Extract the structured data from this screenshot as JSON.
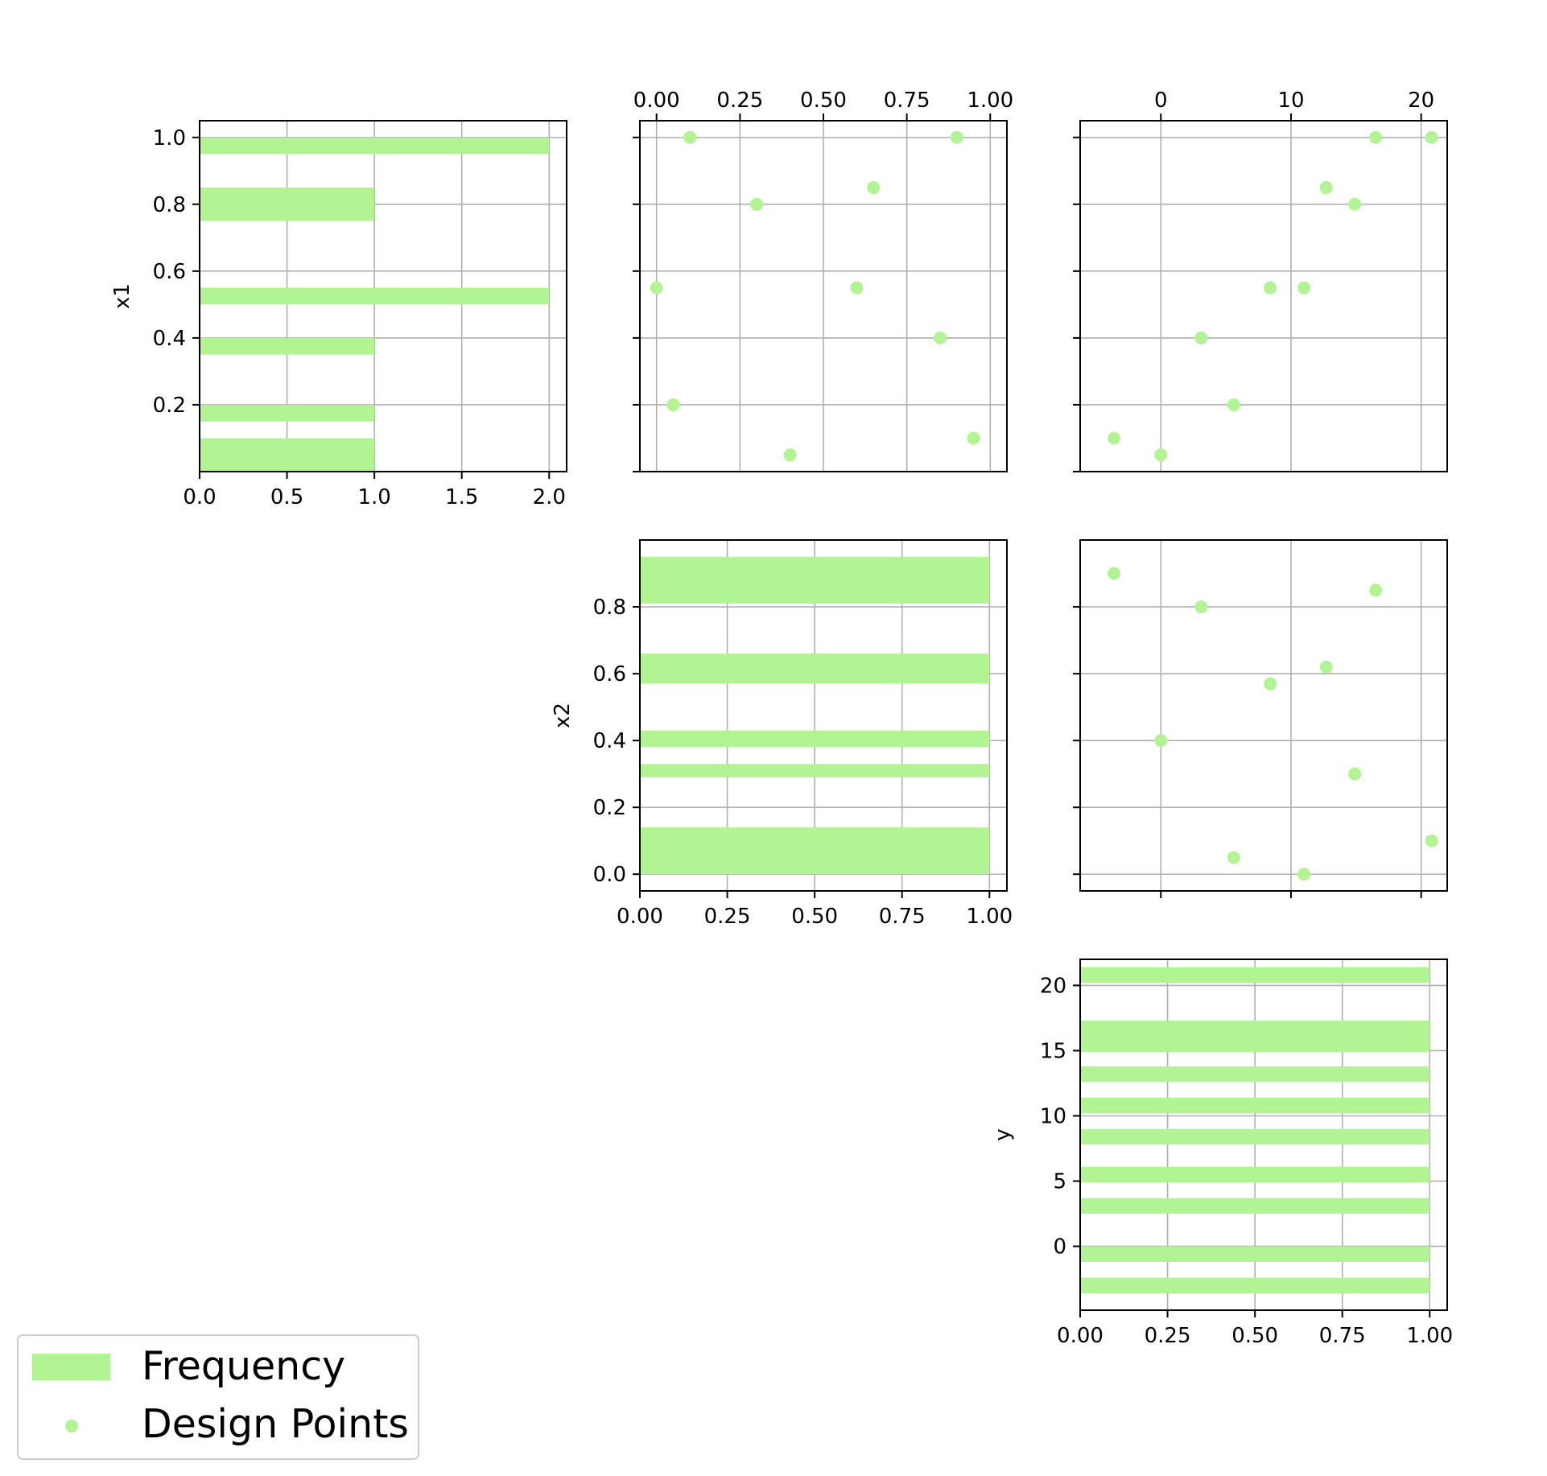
{
  "colors": {
    "series": "#b2f394",
    "grid": "#b0b0b0",
    "axes": "#000000",
    "legend_border": "#cccccc"
  },
  "legend": {
    "placement": "lower-left",
    "items": [
      {
        "label": "Frequency",
        "marker": "bar"
      },
      {
        "label": "Design Points",
        "marker": "dot"
      }
    ]
  },
  "chart_data": [
    {
      "id": "hist-x1",
      "type": "bar",
      "orientation": "horizontal",
      "grid_row": 0,
      "grid_col": 0,
      "ylabel": "x1",
      "xlim": [
        0,
        2.1
      ],
      "ylim": [
        0,
        1.05
      ],
      "xticks": [
        0,
        0.5,
        1,
        1.5,
        2
      ],
      "xtick_labels": [
        "0.0",
        "0.5",
        "1.0",
        "1.5",
        "2.0"
      ],
      "xticks_position": "bottom",
      "yticks": [
        0.2,
        0.4,
        0.6,
        0.8,
        1.0
      ],
      "ytick_labels": [
        "0.2",
        "0.4",
        "0.6",
        "0.8",
        "1.0"
      ],
      "grid": true,
      "bars": [
        {
          "from": 0.0,
          "to": 0.1,
          "value": 1
        },
        {
          "from": 0.15,
          "to": 0.2,
          "value": 1
        },
        {
          "from": 0.35,
          "to": 0.4,
          "value": 1
        },
        {
          "from": 0.5,
          "to": 0.55,
          "value": 2
        },
        {
          "from": 0.75,
          "to": 0.85,
          "value": 1
        },
        {
          "from": 0.95,
          "to": 1.0,
          "value": 2
        }
      ]
    },
    {
      "id": "scatter-x2-x1",
      "type": "scatter",
      "grid_row": 0,
      "grid_col": 1,
      "xlim": [
        -0.05,
        1.05
      ],
      "ylim": [
        0,
        1.05
      ],
      "xticks": [
        0,
        0.25,
        0.5,
        0.75,
        1
      ],
      "xtick_labels": [
        "0.00",
        "0.25",
        "0.50",
        "0.75",
        "1.00"
      ],
      "xticks_position": "top",
      "yticks": [
        0.0,
        0.2,
        0.4,
        0.6,
        0.8,
        1.0
      ],
      "ytick_labels": [],
      "grid": true,
      "x": [
        0.1,
        0.9,
        0.3,
        0.65,
        0.0,
        0.6,
        0.85,
        0.05,
        0.4,
        0.95
      ],
      "y": [
        1.0,
        1.0,
        0.8,
        0.85,
        0.55,
        0.55,
        0.4,
        0.2,
        0.05,
        0.1
      ]
    },
    {
      "id": "scatter-y-x1",
      "type": "scatter",
      "grid_row": 0,
      "grid_col": 2,
      "xlim": [
        -6.2,
        22
      ],
      "ylim": [
        0,
        1.05
      ],
      "xticks": [
        0,
        10,
        20
      ],
      "xtick_labels": [
        "0",
        "10",
        "20"
      ],
      "xticks_position": "top",
      "yticks": [
        0.0,
        0.2,
        0.4,
        0.6,
        0.8,
        1.0
      ],
      "ytick_labels": [],
      "grid": true,
      "x": [
        16.5,
        20.8,
        12.7,
        14.9,
        8.4,
        11.0,
        3.1,
        5.6,
        -3.6,
        0.0
      ],
      "y": [
        1.0,
        1.0,
        0.85,
        0.8,
        0.55,
        0.55,
        0.4,
        0.2,
        0.1,
        0.05
      ]
    },
    {
      "id": "hist-x2",
      "type": "bar",
      "orientation": "horizontal",
      "grid_row": 1,
      "grid_col": 1,
      "ylabel": "x2",
      "xlim": [
        0,
        1.05
      ],
      "ylim": [
        -0.05,
        1.0
      ],
      "xticks": [
        0,
        0.25,
        0.5,
        0.75,
        1
      ],
      "xtick_labels": [
        "0.00",
        "0.25",
        "0.50",
        "0.75",
        "1.00"
      ],
      "xticks_position": "bottom",
      "yticks": [
        0.0,
        0.2,
        0.4,
        0.6,
        0.8
      ],
      "ytick_labels": [
        "0.0",
        "0.2",
        "0.4",
        "0.6",
        "0.8"
      ],
      "grid": true,
      "bars": [
        {
          "from": 0.0,
          "to": 0.14,
          "value": 1
        },
        {
          "from": 0.29,
          "to": 0.33,
          "value": 1
        },
        {
          "from": 0.38,
          "to": 0.43,
          "value": 1
        },
        {
          "from": 0.57,
          "to": 0.66,
          "value": 1
        },
        {
          "from": 0.81,
          "to": 0.95,
          "value": 1
        }
      ]
    },
    {
      "id": "scatter-y-x2",
      "type": "scatter",
      "grid_row": 1,
      "grid_col": 2,
      "xlim": [
        -6.2,
        22
      ],
      "ylim": [
        -0.05,
        1.0
      ],
      "xticks": [
        0,
        10,
        20
      ],
      "xtick_labels": [],
      "xticks_position": "bottom",
      "yticks": [
        0.0,
        0.2,
        0.4,
        0.6,
        0.8
      ],
      "ytick_labels": [],
      "grid": true,
      "x": [
        -3.6,
        3.1,
        16.5,
        12.7,
        8.4,
        0.0,
        14.9,
        20.8,
        5.6,
        11.0
      ],
      "y": [
        0.9,
        0.8,
        0.85,
        0.62,
        0.57,
        0.4,
        0.3,
        0.1,
        0.05,
        0.0
      ]
    },
    {
      "id": "hist-y",
      "type": "bar",
      "orientation": "horizontal",
      "grid_row": 2,
      "grid_col": 2,
      "ylabel": "y",
      "xlim": [
        0,
        1.05
      ],
      "ylim": [
        -4.9,
        22
      ],
      "xticks": [
        0,
        0.25,
        0.5,
        0.75,
        1
      ],
      "xtick_labels": [
        "0.00",
        "0.25",
        "0.50",
        "0.75",
        "1.00"
      ],
      "xticks_position": "bottom",
      "yticks": [
        0,
        5,
        10,
        15,
        20
      ],
      "ytick_labels": [
        "0",
        "5",
        "10",
        "15",
        "20"
      ],
      "grid": true,
      "bars": [
        {
          "from": -3.6,
          "to": -2.4,
          "value": 1
        },
        {
          "from": -1.2,
          "to": 0.0,
          "value": 1
        },
        {
          "from": 2.5,
          "to": 3.7,
          "value": 1
        },
        {
          "from": 4.9,
          "to": 6.1,
          "value": 1
        },
        {
          "from": 7.8,
          "to": 9.0,
          "value": 1
        },
        {
          "from": 10.2,
          "to": 11.4,
          "value": 1
        },
        {
          "from": 12.6,
          "to": 13.8,
          "value": 1
        },
        {
          "from": 14.9,
          "to": 17.3,
          "value": 1
        },
        {
          "from": 20.2,
          "to": 21.4,
          "value": 1
        }
      ]
    }
  ]
}
